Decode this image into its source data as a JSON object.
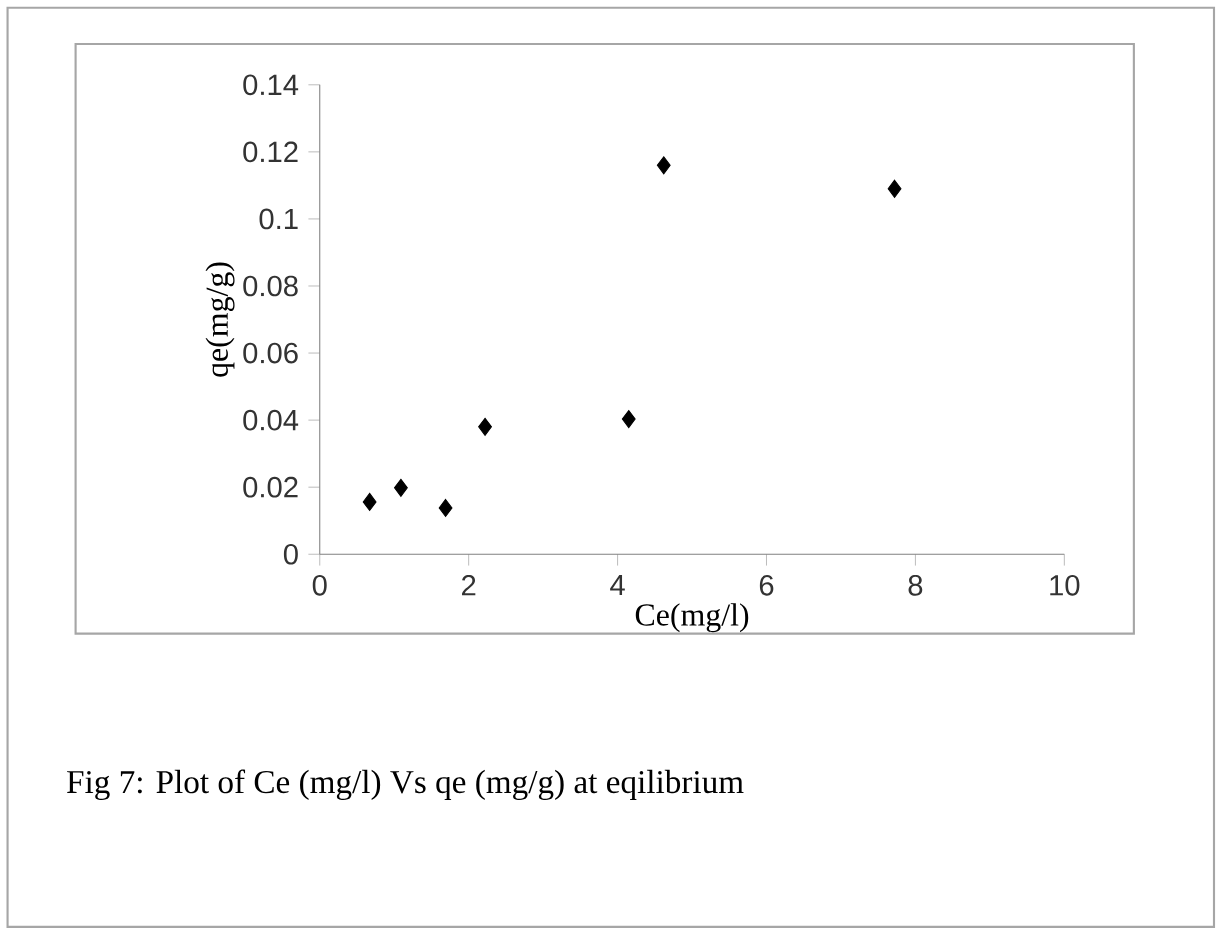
{
  "chart_data": {
    "type": "scatter",
    "xlabel": "Ce(mg/l)",
    "ylabel": "qe(mg/g)",
    "x": [
      0.67,
      1.09,
      1.69,
      2.22,
      4.15,
      4.62,
      7.72
    ],
    "values": [
      0.0156,
      0.0198,
      0.0138,
      0.038,
      0.0403,
      0.116,
      0.109
    ],
    "color": "#000000",
    "marker": "diamond",
    "xlim": [
      0,
      10
    ],
    "xticks": [
      0,
      2,
      4,
      6,
      8,
      10
    ],
    "ylim": [
      0,
      0.14
    ],
    "yticks": [
      0,
      0.02,
      0.04,
      0.06,
      0.08,
      0.1,
      0.12,
      0.14
    ],
    "grid": false,
    "annotations": [
      "Fig 7: Plot of Ce (mg/l) Vs qe (mg/g) at eqilibrium"
    ]
  }
}
